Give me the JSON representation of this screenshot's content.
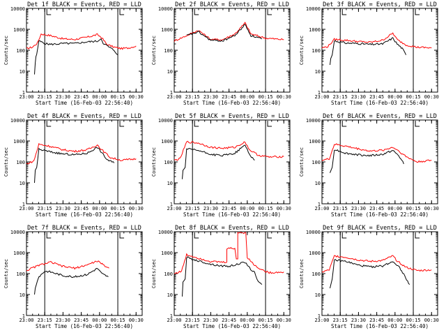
{
  "chart_data": {
    "type": "line",
    "grid": false,
    "yscale": "log",
    "ylim": [
      1,
      10000
    ],
    "xlim": [
      "23:00",
      "00:35"
    ],
    "y_tick_labels": [
      "1",
      "10",
      "100",
      "1000",
      "10000"
    ],
    "x_tick_labels": [
      "23:00",
      "23:15",
      "23:30",
      "23:45",
      "00:00",
      "00:15",
      "00:30"
    ],
    "ylabel": "Counts/sec",
    "xlabel": "Start Time (16-Feb-03 22:56:40)",
    "colors": {
      "events": "#000000",
      "lld": "#ff0000"
    },
    "panels": [
      {
        "title": "Det 1f BLACK = Events, RED = LLD",
        "events": [
          [
            23.11,
            7
          ],
          [
            23.12,
            25
          ],
          [
            23.13,
            50
          ],
          [
            23.14,
            65
          ],
          [
            23.17,
            280
          ],
          [
            23.25,
            210
          ],
          [
            23.33,
            190
          ],
          [
            23.5,
            210
          ],
          [
            23.66,
            210
          ],
          [
            23.83,
            250
          ],
          [
            23.97,
            270
          ],
          [
            24.02,
            350
          ],
          [
            24.05,
            220
          ],
          [
            24.13,
            140
          ],
          [
            24.2,
            100
          ],
          [
            24.25,
            60
          ]
        ],
        "lld": [
          [
            23.0,
            120
          ],
          [
            23.08,
            140
          ],
          [
            23.15,
            220
          ],
          [
            23.2,
            600
          ],
          [
            23.33,
            500
          ],
          [
            23.5,
            350
          ],
          [
            23.66,
            330
          ],
          [
            23.83,
            420
          ],
          [
            23.97,
            560
          ],
          [
            24.03,
            400
          ],
          [
            24.1,
            190
          ],
          [
            24.2,
            140
          ],
          [
            24.3,
            120
          ],
          [
            24.4,
            130
          ],
          [
            24.5,
            160
          ]
        ]
      },
      {
        "title": "Det 2f BLACK = Events, RED = LLD",
        "events": [
          [
            23.17,
            500
          ],
          [
            23.33,
            750
          ],
          [
            23.5,
            300
          ],
          [
            23.66,
            280
          ],
          [
            23.83,
            500
          ],
          [
            23.97,
            1700
          ],
          [
            24.05,
            500
          ],
          [
            24.13,
            420
          ],
          [
            24.2,
            350
          ]
        ],
        "lld": [
          [
            23.0,
            280
          ],
          [
            23.17,
            500
          ],
          [
            23.33,
            900
          ],
          [
            23.5,
            330
          ],
          [
            23.66,
            320
          ],
          [
            23.83,
            600
          ],
          [
            23.97,
            2000
          ],
          [
            24.05,
            600
          ],
          [
            24.25,
            380
          ],
          [
            24.5,
            320
          ]
        ]
      },
      {
        "title": "Det 3f BLACK = Events, RED = LLD",
        "events": [
          [
            23.11,
            20
          ],
          [
            23.12,
            40
          ],
          [
            23.14,
            60
          ],
          [
            23.17,
            280
          ],
          [
            23.33,
            220
          ],
          [
            23.5,
            210
          ],
          [
            23.66,
            190
          ],
          [
            23.83,
            200
          ],
          [
            23.97,
            380
          ],
          [
            24.03,
            200
          ],
          [
            24.1,
            120
          ],
          [
            24.15,
            60
          ]
        ],
        "lld": [
          [
            23.0,
            130
          ],
          [
            23.08,
            150
          ],
          [
            23.17,
            330
          ],
          [
            23.33,
            300
          ],
          [
            23.5,
            260
          ],
          [
            23.66,
            240
          ],
          [
            23.83,
            300
          ],
          [
            23.97,
            650
          ],
          [
            24.03,
            320
          ],
          [
            24.15,
            180
          ],
          [
            24.3,
            140
          ],
          [
            24.5,
            130
          ]
        ]
      },
      {
        "title": "Det 4f BLACK = Events, RED = LLD",
        "events": [
          [
            23.11,
            10
          ],
          [
            23.12,
            40
          ],
          [
            23.14,
            55
          ],
          [
            23.17,
            400
          ],
          [
            23.33,
            300
          ],
          [
            23.5,
            240
          ],
          [
            23.66,
            220
          ],
          [
            23.83,
            260
          ],
          [
            23.97,
            500
          ],
          [
            24.03,
            280
          ],
          [
            24.1,
            130
          ],
          [
            24.2,
            90
          ]
        ],
        "lld": [
          [
            23.0,
            80
          ],
          [
            23.1,
            110
          ],
          [
            23.17,
            700
          ],
          [
            23.33,
            550
          ],
          [
            23.5,
            380
          ],
          [
            23.66,
            320
          ],
          [
            23.83,
            380
          ],
          [
            23.97,
            650
          ],
          [
            24.03,
            380
          ],
          [
            24.15,
            160
          ],
          [
            24.3,
            120
          ],
          [
            24.5,
            140
          ]
        ]
      },
      {
        "title": "Det 5f BLACK = Events, RED = LLD",
        "events": [
          [
            23.11,
            15
          ],
          [
            23.12,
            40
          ],
          [
            23.15,
            55
          ],
          [
            23.17,
            420
          ],
          [
            23.33,
            350
          ],
          [
            23.5,
            230
          ],
          [
            23.66,
            200
          ],
          [
            23.83,
            260
          ],
          [
            23.97,
            650
          ],
          [
            24.03,
            230
          ],
          [
            24.1,
            120
          ]
        ],
        "lld": [
          [
            23.0,
            120
          ],
          [
            23.08,
            140
          ],
          [
            23.17,
            900
          ],
          [
            23.33,
            800
          ],
          [
            23.5,
            500
          ],
          [
            23.66,
            450
          ],
          [
            23.83,
            500
          ],
          [
            23.97,
            900
          ],
          [
            24.03,
            380
          ],
          [
            24.15,
            210
          ],
          [
            24.3,
            170
          ],
          [
            24.5,
            180
          ]
        ]
      },
      {
        "title": "Det 6f BLACK = Events, RED = LLD",
        "events": [
          [
            23.11,
            30
          ],
          [
            23.14,
            55
          ],
          [
            23.17,
            400
          ],
          [
            23.33,
            260
          ],
          [
            23.5,
            220
          ],
          [
            23.66,
            200
          ],
          [
            23.83,
            230
          ],
          [
            23.97,
            350
          ],
          [
            24.05,
            200
          ],
          [
            24.12,
            80
          ]
        ],
        "lld": [
          [
            23.0,
            120
          ],
          [
            23.1,
            140
          ],
          [
            23.17,
            700
          ],
          [
            23.33,
            560
          ],
          [
            23.5,
            420
          ],
          [
            23.66,
            330
          ],
          [
            23.83,
            360
          ],
          [
            23.97,
            500
          ],
          [
            24.03,
            380
          ],
          [
            24.15,
            180
          ],
          [
            24.3,
            100
          ],
          [
            24.5,
            120
          ]
        ]
      },
      {
        "title": "Det 7f BLACK = Events, RED = LLD",
        "events": [
          [
            23.11,
            10
          ],
          [
            23.12,
            20
          ],
          [
            23.15,
            45
          ],
          [
            23.17,
            70
          ],
          [
            23.25,
            130
          ],
          [
            23.33,
            120
          ],
          [
            23.5,
            80
          ],
          [
            23.66,
            70
          ],
          [
            23.83,
            90
          ],
          [
            23.97,
            180
          ],
          [
            24.03,
            100
          ],
          [
            24.12,
            70
          ]
        ],
        "lld": [
          [
            23.0,
            140
          ],
          [
            23.17,
            250
          ],
          [
            23.33,
            350
          ],
          [
            23.5,
            220
          ],
          [
            23.66,
            180
          ],
          [
            23.83,
            260
          ],
          [
            23.97,
            400
          ],
          [
            24.05,
            260
          ],
          [
            24.13,
            180
          ]
        ]
      },
      {
        "title": "Det 8f BLACK = Events, RED = LLD",
        "events": [
          [
            23.11,
            8
          ],
          [
            23.12,
            40
          ],
          [
            23.15,
            55
          ],
          [
            23.17,
            600
          ],
          [
            23.33,
            400
          ],
          [
            23.5,
            280
          ],
          [
            23.66,
            230
          ],
          [
            23.75,
            220
          ],
          [
            23.83,
            260
          ],
          [
            23.97,
            350
          ],
          [
            24.02,
            200
          ],
          [
            24.1,
            110
          ],
          [
            24.15,
            40
          ],
          [
            24.2,
            30
          ]
        ],
        "lld": [
          [
            23.0,
            100
          ],
          [
            23.1,
            130
          ],
          [
            23.17,
            800
          ],
          [
            23.33,
            550
          ],
          [
            23.5,
            380
          ],
          [
            23.66,
            350
          ],
          [
            23.72,
            350
          ],
          [
            23.72,
            1600
          ],
          [
            23.83,
            1600
          ],
          [
            23.85,
            500
          ],
          [
            23.87,
            500
          ],
          [
            23.87,
            9000
          ],
          [
            23.98,
            9000
          ],
          [
            24.0,
            600
          ],
          [
            24.1,
            250
          ],
          [
            24.2,
            150
          ],
          [
            24.3,
            110
          ],
          [
            24.5,
            120
          ]
        ]
      },
      {
        "title": "Det 9f BLACK = Events, RED = LLD",
        "events": [
          [
            23.11,
            20
          ],
          [
            23.14,
            55
          ],
          [
            23.17,
            450
          ],
          [
            23.33,
            380
          ],
          [
            23.5,
            250
          ],
          [
            23.66,
            210
          ],
          [
            23.83,
            230
          ],
          [
            23.97,
            380
          ],
          [
            24.05,
            230
          ],
          [
            24.13,
            80
          ],
          [
            24.2,
            30
          ]
        ],
        "lld": [
          [
            23.0,
            120
          ],
          [
            23.1,
            150
          ],
          [
            23.17,
            700
          ],
          [
            23.33,
            600
          ],
          [
            23.5,
            450
          ],
          [
            23.66,
            380
          ],
          [
            23.83,
            420
          ],
          [
            23.97,
            700
          ],
          [
            24.03,
            400
          ],
          [
            24.15,
            200
          ],
          [
            24.3,
            140
          ],
          [
            24.5,
            150
          ]
        ]
      }
    ]
  }
}
